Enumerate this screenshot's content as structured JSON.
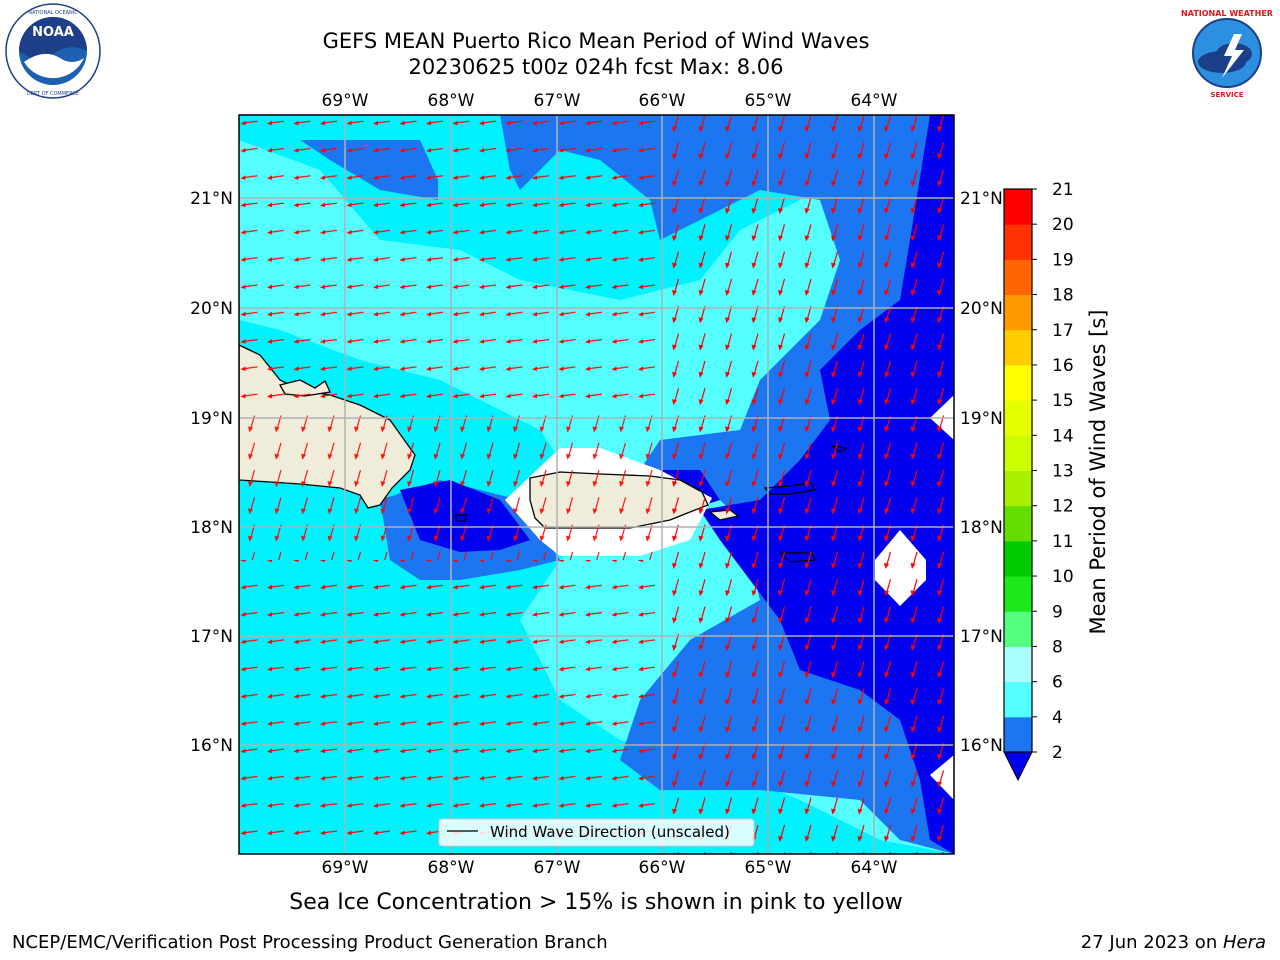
{
  "title": {
    "line1": "GEFS MEAN Puerto Rico Mean Period of Wind Waves",
    "line2": "20230625 t00z 024h fcst   Max: 8.06"
  },
  "logos": {
    "noaa": {
      "icon": "noaa-logo",
      "text": "NOAA",
      "ring_text": "NATIONAL OCEANIC AND ATMOSPHERIC ADMINISTRATION · U.S. DEPARTMENT OF COMMERCE"
    },
    "nws": {
      "icon": "nws-logo",
      "ring_text": "NATIONAL WEATHER SERVICE"
    }
  },
  "map": {
    "lon_ticks": [
      "69°W",
      "68°W",
      "67°W",
      "66°W",
      "65°W",
      "64°W"
    ],
    "lat_ticks": [
      "21°N",
      "20°N",
      "19°N",
      "18°N",
      "17°N",
      "16°N"
    ],
    "legend": "Wind Wave Direction (unscaled)",
    "colors": {
      "band_2_4": "#0000ee",
      "band_4_6": "#1c76f2",
      "band_6_8": "#00f2ff",
      "band_8_9": "#55ffff",
      "land": "#efedda",
      "arrow": "#ff0000",
      "grid": "#b0b0b0"
    }
  },
  "colorbar": {
    "label": "Mean Period of Wind Waves [s]",
    "ticks": [
      "2",
      "4",
      "6",
      "8",
      "9",
      "10",
      "11",
      "12",
      "13",
      "14",
      "15",
      "16",
      "17",
      "18",
      "19",
      "20",
      "21"
    ],
    "colors": [
      "#1c76f2",
      "#00f2ff",
      "#55ffff",
      "#aaffff",
      "#55ff80",
      "#1ce81c",
      "#00cc00",
      "#66dd00",
      "#aaee00",
      "#ccff00",
      "#e6ff00",
      "#ffff00",
      "#ffcc00",
      "#ff9900",
      "#ff6600",
      "#ff3300",
      "#ff0000"
    ],
    "under_color": "#0000ee"
  },
  "subnote": "Sea Ice Concentration > 15% is shown in pink to yellow",
  "footer": {
    "left": "NCEP/EMC/Verification Post Processing Product Generation Branch",
    "date": "27 Jun 2023 on ",
    "host": "Hera"
  }
}
